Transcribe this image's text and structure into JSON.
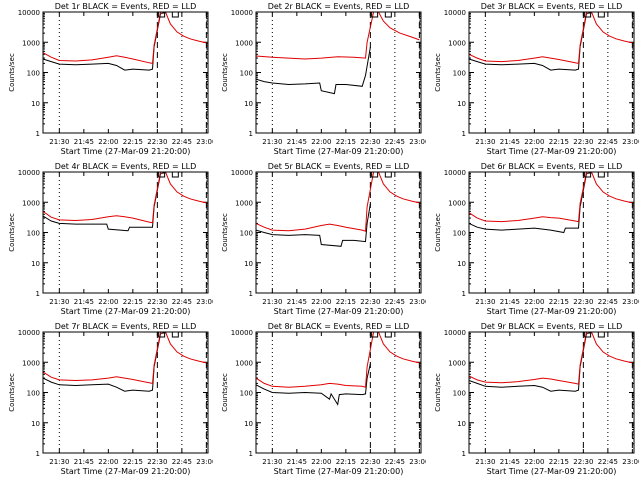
{
  "colors": {
    "events": "#000000",
    "lld": "#e00000",
    "background": "#ffffff"
  },
  "chart_data": [
    {
      "type": "line",
      "title": "Det 1r BLACK = Events, RED = LLD",
      "xlabel": "Start Time (27-Mar-09 21:20:00)",
      "ylabel": "Counts/sec",
      "xtick_labels": [
        "21:30",
        "21:45",
        "22:00",
        "22:15",
        "22:30",
        "22:45",
        "23:00"
      ],
      "ytick_labels": [
        "1",
        "10",
        "100",
        "1000",
        "10000"
      ],
      "yscale": "log",
      "ylim": [
        1,
        10000
      ],
      "dotted_lines": [
        "21:30",
        "22:45"
      ],
      "dashed_lines": [
        "22:30",
        "23:00"
      ],
      "series": [
        {
          "x": [
            "21:20",
            "21:25",
            "21:30",
            "21:40",
            "21:50",
            "22:00",
            "22:05",
            "22:10",
            "22:15",
            "22:25",
            "22:27",
            "22:28",
            "22:32",
            "22:35"
          ],
          "y": [
            280,
            230,
            190,
            180,
            190,
            200,
            170,
            120,
            130,
            120,
            130,
            700,
            9000,
            9500
          ]
        },
        {
          "x": [
            "21:20",
            "21:25",
            "21:30",
            "21:40",
            "21:50",
            "22:00",
            "22:05",
            "22:10",
            "22:15",
            "22:25",
            "22:27",
            "22:28",
            "22:32",
            "22:35",
            "22:38",
            "22:42",
            "22:46",
            "22:50",
            "22:55",
            "23:00"
          ],
          "y": [
            450,
            320,
            250,
            240,
            260,
            320,
            360,
            320,
            280,
            210,
            200,
            800,
            10000,
            10000,
            4000,
            2200,
            1600,
            1300,
            1100,
            950
          ]
        }
      ]
    },
    {
      "type": "line",
      "title": "Det 2r BLACK = Events, RED = LLD",
      "xlabel": "Start Time (27-Mar-09 21:20:00)",
      "ylabel": "Counts/sec",
      "xtick_labels": [
        "21:30",
        "21:45",
        "22:00",
        "22:15",
        "22:30",
        "22:45",
        "23:00"
      ],
      "ytick_labels": [
        "1",
        "10",
        "100",
        "1000",
        "10000"
      ],
      "yscale": "log",
      "ylim": [
        1,
        10000
      ],
      "dotted_lines": [
        "21:30",
        "22:45"
      ],
      "dashed_lines": [
        "22:30",
        "23:00"
      ],
      "series": [
        {
          "x": [
            "21:20",
            "21:25",
            "21:30",
            "21:40",
            "21:50",
            "21:59",
            "22:00",
            "22:08",
            "22:09",
            "22:15",
            "22:25",
            "22:27",
            "22:30"
          ],
          "y": [
            60,
            50,
            45,
            40,
            42,
            45,
            25,
            20,
            40,
            40,
            35,
            80,
            700
          ]
        },
        {
          "x": [
            "21:20",
            "21:30",
            "21:40",
            "21:50",
            "22:00",
            "22:10",
            "22:20",
            "22:27",
            "22:28",
            "22:32",
            "22:35",
            "22:38",
            "22:42",
            "22:48",
            "22:55",
            "23:00"
          ],
          "y": [
            350,
            320,
            300,
            280,
            300,
            330,
            320,
            300,
            1000,
            10000,
            10000,
            5000,
            3000,
            2000,
            1500,
            1200
          ]
        }
      ]
    },
    {
      "type": "line",
      "title": "Det 3r BLACK = Events, RED = LLD",
      "xlabel": "Start Time (27-Mar-09 21:20:00)",
      "ylabel": "Counts/sec",
      "xtick_labels": [
        "21:30",
        "21:45",
        "22:00",
        "22:15",
        "22:30",
        "22:45",
        "23:00"
      ],
      "ytick_labels": [
        "1",
        "10",
        "100",
        "1000",
        "10000"
      ],
      "yscale": "log",
      "ylim": [
        1,
        10000
      ],
      "dotted_lines": [
        "21:30",
        "22:45"
      ],
      "dashed_lines": [
        "22:30",
        "23:00"
      ],
      "series": [
        {
          "x": [
            "21:20",
            "21:25",
            "21:30",
            "21:40",
            "21:50",
            "22:00",
            "22:05",
            "22:10",
            "22:15",
            "22:25",
            "22:27",
            "22:28",
            "22:32",
            "22:35"
          ],
          "y": [
            280,
            230,
            190,
            180,
            190,
            200,
            170,
            120,
            130,
            120,
            130,
            700,
            9000,
            9500
          ]
        },
        {
          "x": [
            "21:20",
            "21:25",
            "21:30",
            "21:40",
            "21:50",
            "22:00",
            "22:05",
            "22:10",
            "22:15",
            "22:25",
            "22:27",
            "22:28",
            "22:32",
            "22:35",
            "22:38",
            "22:42",
            "22:46",
            "22:50",
            "22:55",
            "23:00"
          ],
          "y": [
            400,
            300,
            240,
            230,
            250,
            300,
            330,
            300,
            270,
            210,
            200,
            800,
            10000,
            10000,
            4000,
            2200,
            1600,
            1300,
            1100,
            950
          ]
        }
      ]
    },
    {
      "type": "line",
      "title": "Det 4r BLACK = Events, RED = LLD",
      "xlabel": "Start Time (27-Mar-09 21:20:00)",
      "ylabel": "Counts/sec",
      "xtick_labels": [
        "21:30",
        "21:45",
        "22:00",
        "22:15",
        "22:30",
        "22:45",
        "23:00"
      ],
      "ytick_labels": [
        "1",
        "10",
        "100",
        "1000",
        "10000"
      ],
      "yscale": "log",
      "ylim": [
        1,
        10000
      ],
      "dotted_lines": [
        "21:30",
        "22:45"
      ],
      "dashed_lines": [
        "22:30",
        "23:00"
      ],
      "series": [
        {
          "x": [
            "21:20",
            "21:25",
            "21:30",
            "21:40",
            "21:50",
            "21:59",
            "22:00",
            "22:12",
            "22:13",
            "22:20",
            "22:27",
            "22:28",
            "22:32",
            "22:35"
          ],
          "y": [
            350,
            240,
            200,
            190,
            190,
            190,
            130,
            115,
            150,
            150,
            150,
            700,
            9000,
            9500
          ]
        },
        {
          "x": [
            "21:20",
            "21:25",
            "21:30",
            "21:40",
            "21:50",
            "22:00",
            "22:05",
            "22:10",
            "22:15",
            "22:25",
            "22:27",
            "22:28",
            "22:32",
            "22:35",
            "22:38",
            "22:42",
            "22:46",
            "22:50",
            "22:55",
            "23:00"
          ],
          "y": [
            500,
            320,
            260,
            250,
            270,
            330,
            360,
            330,
            300,
            220,
            210,
            800,
            10000,
            10000,
            4000,
            2200,
            1600,
            1300,
            1100,
            950
          ]
        }
      ]
    },
    {
      "type": "line",
      "title": "Det 5r BLACK = Events, RED = LLD",
      "xlabel": "Start Time (27-Mar-09 21:20:00)",
      "ylabel": "Counts/sec",
      "xtick_labels": [
        "21:30",
        "21:45",
        "22:00",
        "22:15",
        "22:30",
        "22:45",
        "23:00"
      ],
      "ytick_labels": [
        "1",
        "10",
        "100",
        "1000",
        "10000"
      ],
      "yscale": "log",
      "ylim": [
        1,
        10000
      ],
      "dotted_lines": [
        "21:30",
        "22:45"
      ],
      "dashed_lines": [
        "22:30",
        "23:00"
      ],
      "series": [
        {
          "x": [
            "21:20",
            "21:25",
            "21:30",
            "21:40",
            "21:50",
            "21:59",
            "22:00",
            "22:12",
            "22:13",
            "22:20",
            "22:27",
            "22:28",
            "22:30"
          ],
          "y": [
            120,
            100,
            85,
            80,
            85,
            80,
            40,
            35,
            55,
            55,
            50,
            200,
            900
          ]
        },
        {
          "x": [
            "21:20",
            "21:25",
            "21:30",
            "21:40",
            "21:50",
            "22:00",
            "22:05",
            "22:10",
            "22:15",
            "22:25",
            "22:27",
            "22:28",
            "22:32",
            "22:35",
            "22:38",
            "22:42",
            "22:46",
            "22:50",
            "22:55",
            "23:00"
          ],
          "y": [
            200,
            150,
            120,
            115,
            130,
            170,
            190,
            170,
            150,
            120,
            110,
            700,
            10000,
            10000,
            4000,
            2200,
            1600,
            1300,
            1100,
            950
          ]
        }
      ]
    },
    {
      "type": "line",
      "title": "Det 6r BLACK = Events, RED = LLD",
      "xlabel": "Start Time (27-Mar-09 21:20:00)",
      "ylabel": "Counts/sec",
      "xtick_labels": [
        "21:30",
        "21:45",
        "22:00",
        "22:15",
        "22:30",
        "22:45",
        "23:00"
      ],
      "ytick_labels": [
        "1",
        "10",
        "100",
        "1000",
        "10000"
      ],
      "yscale": "log",
      "ylim": [
        1,
        10000
      ],
      "dotted_lines": [
        "21:30",
        "22:45"
      ],
      "dashed_lines": [
        "22:30",
        "23:00"
      ],
      "series": [
        {
          "x": [
            "21:20",
            "21:25",
            "21:30",
            "21:40",
            "21:50",
            "22:00",
            "22:05",
            "22:10",
            "22:18",
            "22:19",
            "22:27",
            "22:28",
            "22:32",
            "22:35"
          ],
          "y": [
            200,
            150,
            130,
            120,
            130,
            140,
            130,
            120,
            100,
            140,
            140,
            700,
            9000,
            9500
          ]
        },
        {
          "x": [
            "21:20",
            "21:25",
            "21:30",
            "21:40",
            "21:50",
            "22:00",
            "22:05",
            "22:10",
            "22:15",
            "22:25",
            "22:27",
            "22:28",
            "22:32",
            "22:35",
            "22:38",
            "22:42",
            "22:46",
            "22:50",
            "22:55",
            "23:00"
          ],
          "y": [
            450,
            300,
            240,
            230,
            250,
            300,
            330,
            310,
            300,
            240,
            230,
            900,
            10000,
            10000,
            4000,
            2200,
            1600,
            1300,
            1100,
            950
          ]
        }
      ]
    },
    {
      "type": "line",
      "title": "Det 7r BLACK = Events, RED = LLD",
      "xlabel": "Start Time (27-Mar-09 21:20:00)",
      "ylabel": "Counts/sec",
      "xtick_labels": [
        "21:30",
        "21:45",
        "22:00",
        "22:15",
        "22:30",
        "22:45",
        "23:00"
      ],
      "ytick_labels": [
        "1",
        "10",
        "100",
        "1000",
        "10000"
      ],
      "yscale": "log",
      "ylim": [
        1,
        10000
      ],
      "dotted_lines": [
        "21:30",
        "22:45"
      ],
      "dashed_lines": [
        "22:30",
        "23:00"
      ],
      "series": [
        {
          "x": [
            "21:20",
            "21:25",
            "21:30",
            "21:40",
            "21:50",
            "22:00",
            "22:05",
            "22:10",
            "22:15",
            "22:25",
            "22:27",
            "22:28",
            "22:32",
            "22:35"
          ],
          "y": [
            300,
            220,
            180,
            170,
            180,
            190,
            150,
            110,
            120,
            110,
            120,
            700,
            9000,
            9500
          ]
        },
        {
          "x": [
            "21:20",
            "21:25",
            "21:30",
            "21:40",
            "21:50",
            "22:00",
            "22:05",
            "22:10",
            "22:15",
            "22:25",
            "22:27",
            "22:28",
            "22:32",
            "22:35",
            "22:38",
            "22:42",
            "22:46",
            "22:50",
            "22:55",
            "23:00"
          ],
          "y": [
            480,
            320,
            260,
            250,
            260,
            300,
            330,
            300,
            270,
            210,
            200,
            800,
            10000,
            10000,
            4000,
            2200,
            1600,
            1300,
            1100,
            950
          ]
        }
      ]
    },
    {
      "type": "line",
      "title": "Det 8r BLACK = Events, RED = LLD",
      "xlabel": "Start Time (27-Mar-09 21:20:00)",
      "ylabel": "Counts/sec",
      "xtick_labels": [
        "21:30",
        "21:45",
        "22:00",
        "22:15",
        "22:30",
        "22:45",
        "23:00"
      ],
      "ytick_labels": [
        "1",
        "10",
        "100",
        "1000",
        "10000"
      ],
      "yscale": "log",
      "ylim": [
        1,
        10000
      ],
      "dotted_lines": [
        "21:30",
        "22:45"
      ],
      "dashed_lines": [
        "22:30",
        "23:00"
      ],
      "series": [
        {
          "x": [
            "21:20",
            "21:25",
            "21:30",
            "21:40",
            "21:50",
            "22:00",
            "22:05",
            "22:06",
            "22:10",
            "22:11",
            "22:15",
            "22:25",
            "22:27",
            "22:28",
            "22:30"
          ],
          "y": [
            180,
            130,
            100,
            95,
            100,
            95,
            60,
            90,
            40,
            85,
            90,
            85,
            90,
            300,
            900
          ]
        },
        {
          "x": [
            "21:20",
            "21:25",
            "21:30",
            "21:40",
            "21:50",
            "22:00",
            "22:05",
            "22:10",
            "22:15",
            "22:25",
            "22:27",
            "22:28",
            "22:32",
            "22:35",
            "22:38",
            "22:42",
            "22:46",
            "22:50",
            "22:55",
            "23:00"
          ],
          "y": [
            300,
            200,
            160,
            150,
            160,
            180,
            200,
            190,
            170,
            160,
            150,
            700,
            10000,
            10000,
            4000,
            2200,
            1600,
            1300,
            1100,
            950
          ]
        }
      ]
    },
    {
      "type": "line",
      "title": "Det 9r BLACK = Events, RED = LLD",
      "xlabel": "Start Time (27-Mar-09 21:20:00)",
      "ylabel": "Counts/sec",
      "xtick_labels": [
        "21:30",
        "21:45",
        "22:00",
        "22:15",
        "22:30",
        "22:45",
        "23:00"
      ],
      "ytick_labels": [
        "1",
        "10",
        "100",
        "1000",
        "10000"
      ],
      "yscale": "log",
      "ylim": [
        1,
        10000
      ],
      "dotted_lines": [
        "21:30",
        "22:45"
      ],
      "dashed_lines": [
        "22:30",
        "23:00"
      ],
      "series": [
        {
          "x": [
            "21:20",
            "21:25",
            "21:30",
            "21:40",
            "21:50",
            "22:00",
            "22:05",
            "22:10",
            "22:15",
            "22:25",
            "22:27",
            "22:28",
            "22:32",
            "22:35"
          ],
          "y": [
            250,
            200,
            160,
            150,
            160,
            170,
            150,
            110,
            120,
            110,
            120,
            700,
            9000,
            9500
          ]
        },
        {
          "x": [
            "21:20",
            "21:25",
            "21:30",
            "21:40",
            "21:50",
            "22:00",
            "22:05",
            "22:10",
            "22:15",
            "22:25",
            "22:27",
            "22:28",
            "22:32",
            "22:35",
            "22:38",
            "22:42",
            "22:46",
            "22:50",
            "22:55",
            "23:00"
          ],
          "y": [
            350,
            260,
            220,
            210,
            230,
            270,
            300,
            280,
            250,
            200,
            190,
            800,
            10000,
            10000,
            4000,
            2200,
            1600,
            1300,
            1100,
            950
          ]
        }
      ]
    }
  ]
}
